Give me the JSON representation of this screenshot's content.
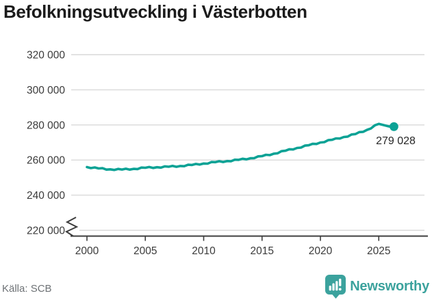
{
  "header": {
    "title": "Befolkningsutveckling i Västerbotten"
  },
  "chart_data": {
    "type": "line",
    "title": "Befolkningsutveckling i Västerbotten",
    "x": [
      2000,
      2001,
      2002,
      2003,
      2004,
      2005,
      2006,
      2007,
      2008,
      2009,
      2010,
      2011,
      2012,
      2013,
      2014,
      2015,
      2016,
      2017,
      2018,
      2019,
      2020,
      2021,
      2022,
      2023,
      2024,
      2025,
      2025.9,
      2026.3
    ],
    "values": [
      256000,
      255200,
      254700,
      254600,
      255000,
      255600,
      255900,
      256200,
      256600,
      257200,
      258000,
      258800,
      259400,
      260100,
      261000,
      262200,
      263600,
      265300,
      266900,
      268400,
      270000,
      271500,
      273100,
      274800,
      277200,
      280600,
      279100,
      279028
    ],
    "x_ticks": [
      2000,
      2005,
      2010,
      2015,
      2020,
      2025
    ],
    "x_tick_labels": [
      "2000",
      "2005",
      "2010",
      "2015",
      "2020",
      "2025"
    ],
    "y_ticks": [
      220000,
      240000,
      260000,
      280000,
      300000,
      320000
    ],
    "y_tick_labels": [
      "220 000",
      "240 000",
      "260 000",
      "280 000",
      "300 000",
      "320 000"
    ],
    "xlim": [
      1999.4,
      2027.5
    ],
    "ylim": [
      220000,
      322000
    ],
    "grid": "horizontal-only",
    "y_axis_break": true,
    "legend": "none",
    "line_color": "#0ba295",
    "axis_color": "#3d3d3d",
    "grid_color": "#d9d9d9",
    "tick_label_color": "#3a3a3a",
    "last_point": {
      "label": "279 028",
      "value": 279028
    }
  },
  "footer": {
    "source": "Källa: SCB",
    "brand": "Newsworthy",
    "brand_color": "#3ba29d",
    "brand_icon": "bar-chart-speech-bubble-icon"
  }
}
